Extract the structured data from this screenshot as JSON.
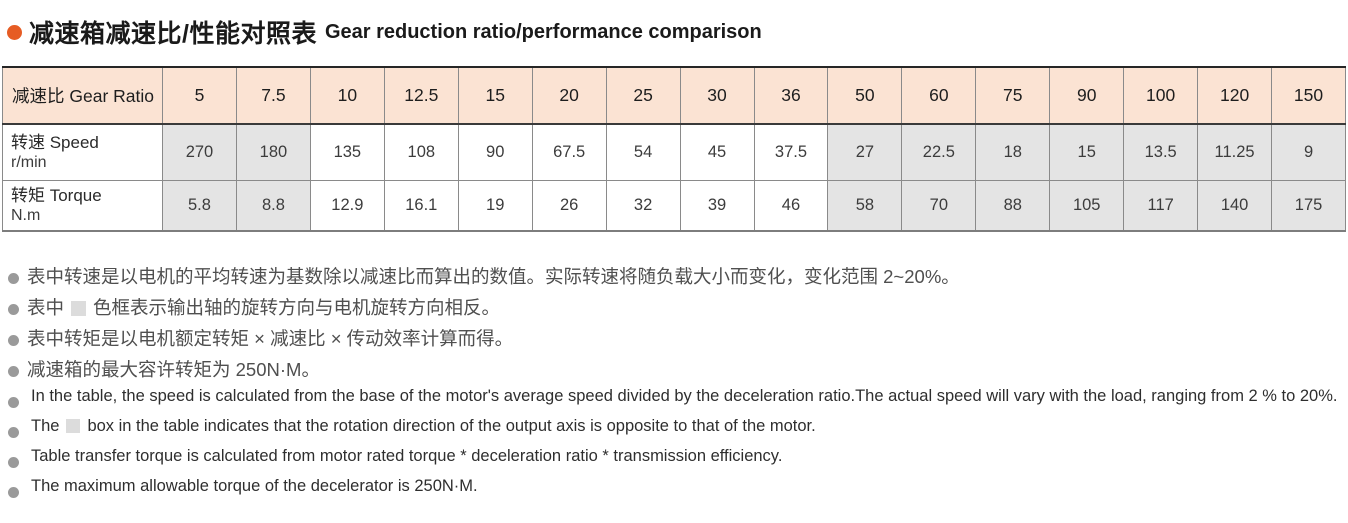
{
  "title": {
    "zh": "减速箱减速比/性能对照表",
    "en": "Gear reduction ratio/performance comparison",
    "bullet_color": "#e65c24"
  },
  "table": {
    "corner_label": "减速比 Gear Ratio",
    "ratios": [
      "5",
      "7.5",
      "10",
      "12.5",
      "15",
      "20",
      "25",
      "30",
      "36",
      "50",
      "60",
      "75",
      "90",
      "100",
      "120",
      "150"
    ],
    "rows": [
      {
        "name": "speed",
        "label": "转速 Speed",
        "unit": "r/min",
        "values": [
          "270",
          "180",
          "135",
          "108",
          "90",
          "67.5",
          "54",
          "45",
          "37.5",
          "27",
          "22.5",
          "18",
          "15",
          "13.5",
          "11.25",
          "9"
        ],
        "shaded": [
          true,
          true,
          false,
          false,
          false,
          false,
          false,
          false,
          false,
          true,
          true,
          true,
          true,
          true,
          true,
          true
        ]
      },
      {
        "name": "torque",
        "label": "转矩 Torque",
        "unit": "N.m",
        "values": [
          "5.8",
          "8.8",
          "12.9",
          "16.1",
          "19",
          "26",
          "32",
          "39",
          "46",
          "58",
          "70",
          "88",
          "105",
          "117",
          "140",
          "175"
        ],
        "shaded": [
          true,
          true,
          false,
          false,
          false,
          false,
          false,
          false,
          false,
          true,
          true,
          true,
          true,
          true,
          true,
          true
        ]
      }
    ],
    "colors": {
      "header_bg": "#fbe3d3",
      "shaded_cell_bg": "#e4e4e4"
    }
  },
  "notes_zh": [
    {
      "pre": "表中转速是以电机的平均转速为基数除以减速比而算出的数值。实际转速将随负载大小而变化，变化范围 2~20%。",
      "has_box": false,
      "post": ""
    },
    {
      "pre": "表中",
      "has_box": true,
      "post": "色框表示输出轴的旋转方向与电机旋转方向相反。"
    },
    {
      "pre": "表中转矩是以电机额定转矩 × 减速比 × 传动效率计算而得。",
      "has_box": false,
      "post": ""
    },
    {
      "pre": "减速箱的最大容许转矩为 250N·M。",
      "has_box": false,
      "post": ""
    }
  ],
  "notes_en": [
    {
      "pre": "In the table, the speed is calculated from the base of the motor's average speed divided by the deceleration ratio.The actual speed will vary with the load, ranging from 2 % to 20%.",
      "has_box": false,
      "post": ""
    },
    {
      "pre": "The",
      "has_box": true,
      "post": "box in the table indicates that the rotation direction of the output axis is opposite to that of the motor."
    },
    {
      "pre": "Table transfer torque is calculated from motor rated torque * deceleration ratio * transmission efficiency.",
      "has_box": false,
      "post": ""
    },
    {
      "pre": "The maximum allowable torque of the decelerator is 250N·M.",
      "has_box": false,
      "post": ""
    }
  ]
}
